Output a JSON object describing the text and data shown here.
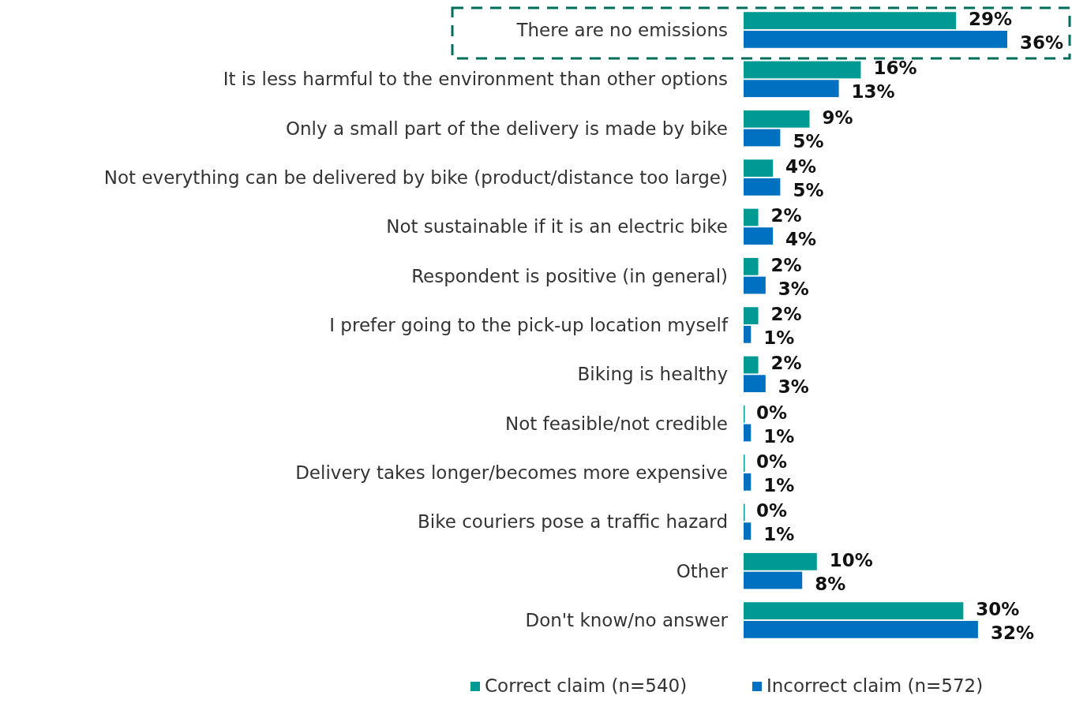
{
  "chart_data": {
    "type": "bar",
    "orientation": "horizontal",
    "categories": [
      "There are no emissions",
      "It is less harmful to the environment than other options",
      "Only a small part of the delivery is made by bike",
      "Not everything can be delivered by bike (product/distance too large)",
      "Not sustainable if it is an electric bike",
      "Respondent is positive (in general)",
      "I prefer going to the pick-up location myself",
      "Biking is healthy",
      "Not feasible/not credible",
      "Delivery takes longer/becomes more expensive",
      "Bike couriers pose a traffic hazard",
      "Other",
      "Don't know/no answer"
    ],
    "series": [
      {
        "name": "Correct claim (n=540)",
        "color": "#009a94",
        "values": [
          29,
          16,
          9,
          4,
          2,
          2,
          2,
          2,
          0,
          0,
          0,
          10,
          30
        ],
        "value_labels": [
          "29%",
          "16%",
          "9%",
          "4%",
          "2%",
          "2%",
          "2%",
          "2%",
          "0%",
          "0%",
          "0%",
          "10%",
          "30%"
        ]
      },
      {
        "name": "Incorrect claim (n=572)",
        "color": "#0070c0",
        "values": [
          36,
          13,
          5,
          5,
          4,
          3,
          1,
          3,
          1,
          1,
          1,
          8,
          32
        ],
        "value_labels": [
          "36%",
          "13%",
          "5%",
          "5%",
          "4%",
          "3%",
          "1%",
          "3%",
          "1%",
          "1%",
          "1%",
          "8%",
          "32%"
        ]
      }
    ],
    "legend": "bottom"
  }
}
